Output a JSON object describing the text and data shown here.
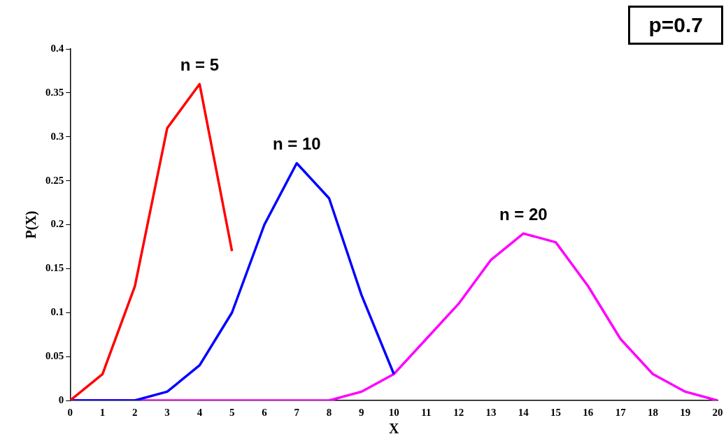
{
  "chart_data": {
    "type": "line",
    "xlabel": "X",
    "ylabel": "P(X)",
    "annotations": [
      "p=0.7"
    ],
    "xlim": [
      0,
      20
    ],
    "xticks": [
      0,
      1,
      2,
      3,
      4,
      5,
      6,
      7,
      8,
      9,
      10,
      11,
      12,
      13,
      14,
      15,
      16,
      17,
      18,
      19,
      20
    ],
    "ylim": [
      0,
      0.4
    ],
    "yticks": [
      0,
      0.05,
      0.1,
      0.15,
      0.2,
      0.25,
      0.3,
      0.35,
      0.4
    ],
    "grid": false,
    "legend": false,
    "marker": "none",
    "line_style": "solid",
    "x": [
      0,
      1,
      2,
      3,
      4,
      5,
      6,
      7,
      8,
      9,
      10,
      11,
      12,
      13,
      14,
      15,
      16,
      17,
      18,
      19,
      20
    ],
    "series": [
      {
        "name": "n = 5",
        "color": "#ff0000",
        "values": [
          0,
          0.03,
          0.13,
          0.31,
          0.36,
          0.17,
          null,
          null,
          null,
          null,
          null,
          null,
          null,
          null,
          null,
          null,
          null,
          null,
          null,
          null,
          null
        ]
      },
      {
        "name": "n = 10",
        "color": "#0000ff",
        "values": [
          0,
          0,
          0,
          0.01,
          0.04,
          0.1,
          0.2,
          0.27,
          0.23,
          0.12,
          0.03,
          null,
          null,
          null,
          null,
          null,
          null,
          null,
          null,
          null,
          null
        ]
      },
      {
        "name": "n = 20",
        "color": "#ff00ff",
        "values": [
          0,
          0,
          0,
          0,
          0,
          0,
          0,
          0,
          0,
          0.01,
          0.03,
          0.07,
          0.11,
          0.16,
          0.19,
          0.18,
          0.13,
          0.07,
          0.03,
          0.01,
          0
        ]
      }
    ]
  }
}
